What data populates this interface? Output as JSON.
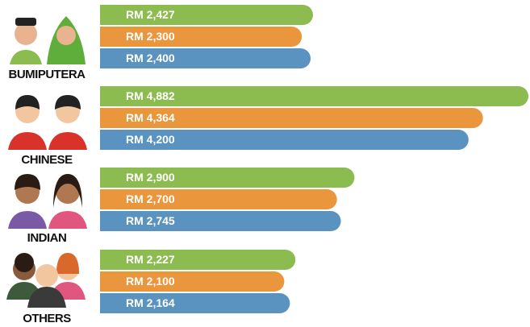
{
  "chart_data": {
    "type": "bar",
    "orientation": "horizontal",
    "categories": [
      "BUMIPUTERA",
      "CHINESE",
      "INDIAN",
      "OTHERS"
    ],
    "series": [
      {
        "color": "#8cbc4f",
        "values": [
          2427,
          4882,
          2900,
          2227
        ],
        "value_labels": [
          "RM 2,427",
          "RM 4,882",
          "RM 2,900",
          "RM 2,227"
        ]
      },
      {
        "color": "#e9963d",
        "values": [
          2300,
          4364,
          2700,
          2100
        ],
        "value_labels": [
          "RM 2,300",
          "RM 4,364",
          "RM 2,700",
          "RM 2,100"
        ]
      },
      {
        "color": "#5b93c0",
        "values": [
          2400,
          4200,
          2745,
          2164
        ],
        "value_labels": [
          "RM 2,400",
          "RM 4,200",
          "RM 2,745",
          "RM 2,164"
        ]
      }
    ]
  }
}
